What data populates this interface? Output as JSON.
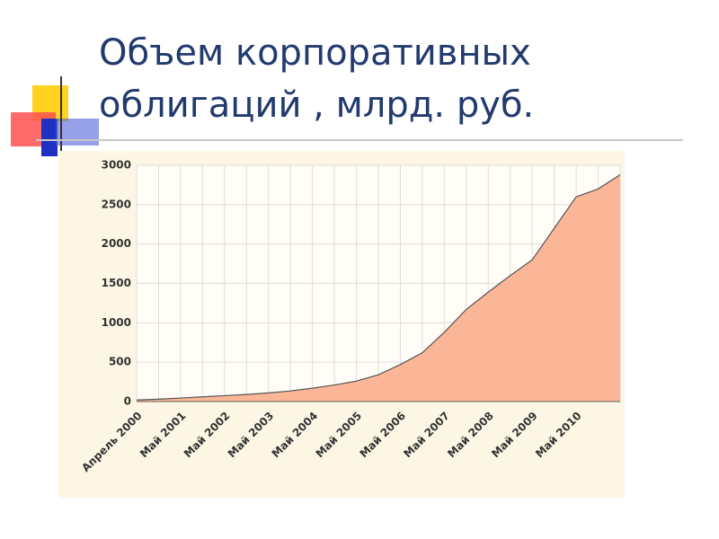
{
  "chart_data": {
    "type": "area",
    "title": [
      "Объем корпоративных",
      "облигаций , млрд. руб."
    ],
    "categories": [
      "Апрель 2000",
      null,
      "Май 2001",
      null,
      "Май 2002",
      null,
      "Май 2003",
      null,
      "Май 2004",
      null,
      "Май 2005",
      null,
      "Май 2006",
      null,
      "Май 2007",
      null,
      "Май 2008",
      null,
      "Май 2009",
      null,
      "Май 2010",
      null,
      null
    ],
    "values": [
      20,
      30,
      45,
      60,
      75,
      90,
      110,
      135,
      170,
      210,
      260,
      340,
      470,
      620,
      880,
      1170,
      1390,
      1600,
      1800,
      2200,
      2600,
      2700,
      2880
    ],
    "color": "#fbb597",
    "ylim": [
      0,
      3000
    ],
    "yticks": [
      0,
      500,
      1000,
      1500,
      2000,
      2500,
      3000
    ],
    "grid": true
  }
}
